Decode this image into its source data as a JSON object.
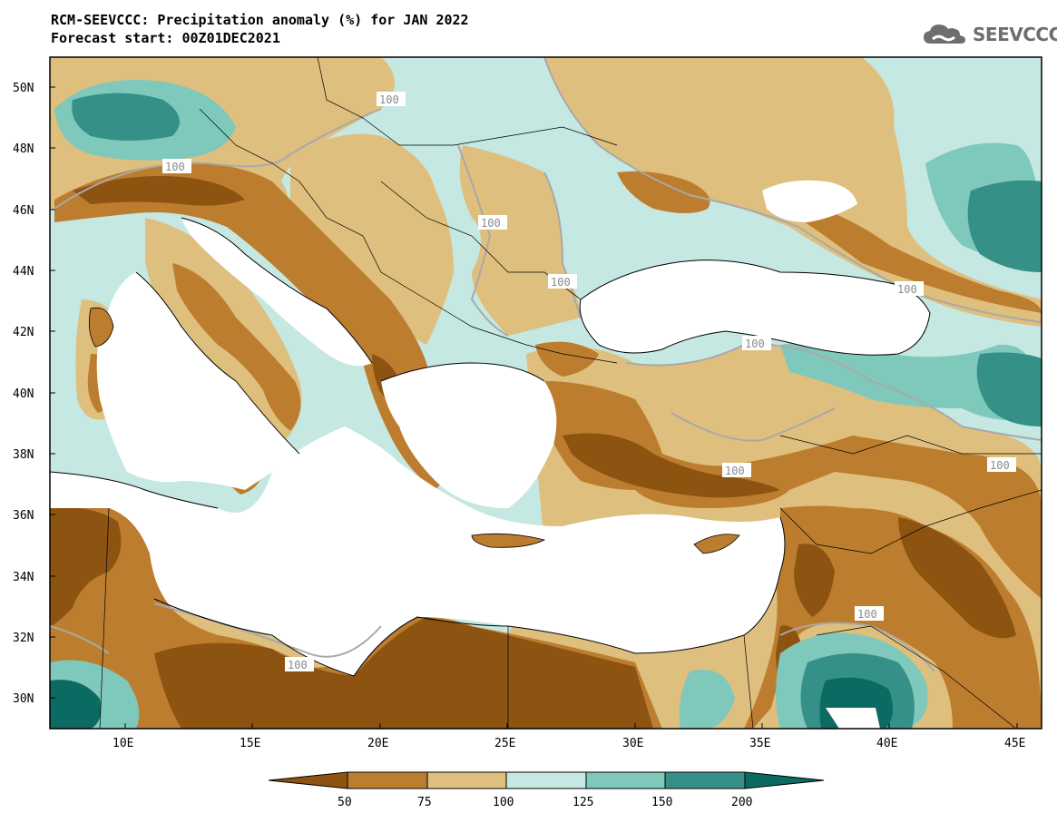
{
  "title": {
    "line1": "RCM-SEEVCCC: Precipitation anomaly (%) for JAN 2022",
    "line2": "Forecast start: 00Z01DEC2021"
  },
  "logo": {
    "text": "SEEVCCC",
    "icon": "cloud-icon"
  },
  "map": {
    "lat_labels": [
      "50N",
      "48N",
      "46N",
      "44N",
      "42N",
      "40N",
      "38N",
      "36N",
      "34N",
      "32N",
      "30N"
    ],
    "lon_labels": [
      "10E",
      "15E",
      "20E",
      "25E",
      "30E",
      "35E",
      "40E",
      "45E"
    ],
    "contour_label": "100"
  },
  "colorbar": {
    "levels": [
      "50",
      "75",
      "100",
      "125",
      "150",
      "200"
    ],
    "colors": [
      "#8c5311",
      "#bd7d2f",
      "#dfbf7d",
      "#c5e8e2",
      "#7ec9bb",
      "#359187",
      "#0b6b62"
    ]
  }
}
